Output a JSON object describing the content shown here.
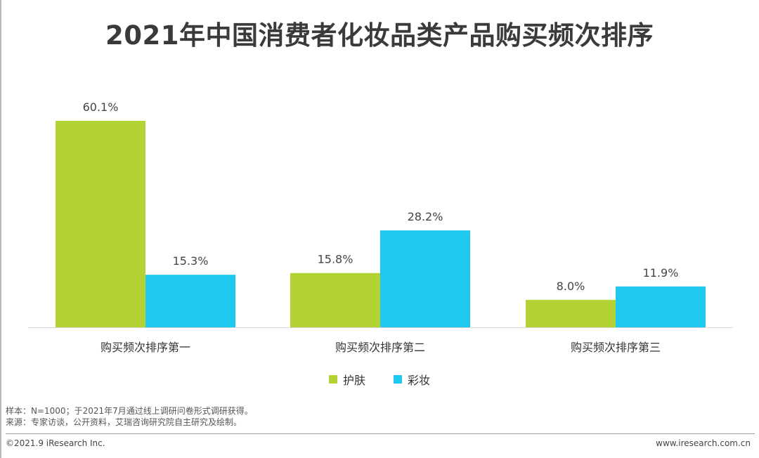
{
  "chart_data": {
    "type": "bar",
    "title": "2021年中国消费者化妆品类产品购买频次排序",
    "categories": [
      "购买频次排序第一",
      "购买频次排序第二",
      "购买频次排序第三"
    ],
    "series": [
      {
        "name": "护肤",
        "color": "#b3d335",
        "values": [
          60.1,
          15.8,
          8.0
        ],
        "labels": [
          "60.1%",
          "15.8%",
          "8.0%"
        ]
      },
      {
        "name": "彩妆",
        "color": "#1ec8ef",
        "values": [
          15.3,
          28.2,
          11.9
        ],
        "labels": [
          "15.3%",
          "28.2%",
          "11.9%"
        ]
      }
    ],
    "ylim": [
      0,
      60.1
    ],
    "grid": false,
    "legend_position": "bottom-center"
  },
  "notes": {
    "sample": "样本：N=1000；于2021年7月通过线上调研问卷形式调研获得。",
    "source": "来源：专家访谈，公开资料，艾瑞咨询研究院自主研究及绘制。"
  },
  "footer": {
    "copyright": "©2021.9 iResearch Inc.",
    "website": "www.iresearch.com.cn"
  }
}
